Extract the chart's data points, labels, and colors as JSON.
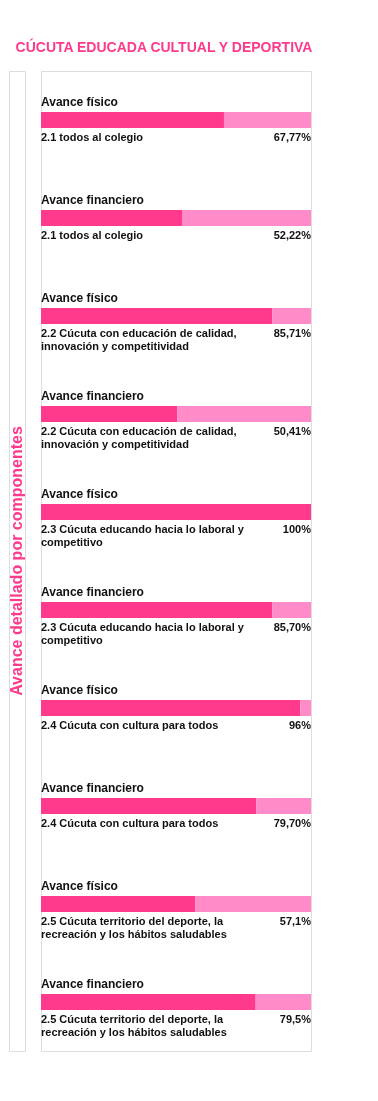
{
  "chart_data": {
    "type": "bar",
    "orientation": "horizontal",
    "title": "CÚCUTA EDUCADA CULTUAL Y DEPORTIVA",
    "ylabel": "Avance detallado por componentes",
    "categories": [
      "2.1 todos al colegio",
      "2.2 Cúcuta con educación de calidad, innovación y competitividad",
      "2.3 Cúcuta educando hacia lo laboral y competitivo",
      "2.4 Cúcuta con cultura para todos",
      "2.5 Cúcuta territorio del deporte, la recreación y los hábitos saludables"
    ],
    "series": [
      {
        "name": "Avance físico",
        "color": "#ff3a8c",
        "values": [
          67.77,
          85.71,
          100,
          96,
          57.1
        ],
        "value_labels": [
          "67,77%",
          "85,71%",
          "100%",
          "96%",
          "57,1%"
        ]
      },
      {
        "name": "Avance financiero",
        "color": "#ff3a8c",
        "values": [
          52.22,
          50.41,
          85.7,
          79.7,
          79.5
        ],
        "value_labels": [
          "52,22%",
          "50,41%",
          "85,70%",
          "79,70%",
          "79,5%"
        ]
      }
    ],
    "xlim": [
      0,
      100
    ],
    "tick_labels": false
  }
}
